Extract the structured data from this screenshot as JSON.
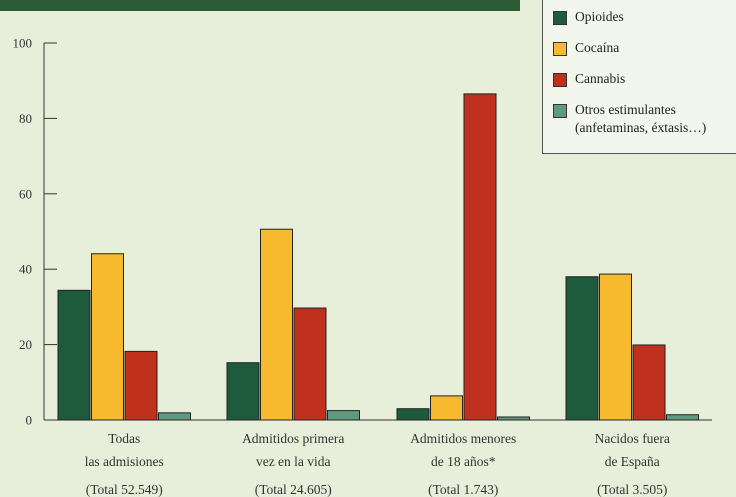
{
  "chart_data": {
    "type": "bar",
    "categories": [
      [
        "Todas",
        "las admisiones",
        "(Total 52.549)"
      ],
      [
        "Admitidos primera",
        "vez en la vida",
        "(Total 24.605)"
      ],
      [
        "Admitidos menores",
        "de 18 años*",
        "(Total 1.743)"
      ],
      [
        "Nacidos fuera",
        "de España",
        "(Total 3.505)"
      ]
    ],
    "series": [
      {
        "name": "Opioides",
        "color": "#1e5a3c",
        "values": [
          34.4,
          15.2,
          3.0,
          38.0
        ]
      },
      {
        "name": "Cocaína",
        "color": "#f7b92e",
        "values": [
          44.1,
          50.6,
          6.4,
          38.7
        ]
      },
      {
        "name": "Cannabis",
        "color": "#c0311d",
        "values": [
          18.2,
          29.7,
          86.5,
          19.9
        ]
      },
      {
        "name": "Otros estimulantes (anfetaminas, éxtasis…)",
        "color": "#5e9a80",
        "values": [
          1.9,
          2.5,
          0.8,
          1.4
        ]
      }
    ],
    "legend_lines": [
      [
        "Opioides"
      ],
      [
        "Cocaína"
      ],
      [
        "Cannabis"
      ],
      [
        "Otros estimulantes",
        "(anfetaminas, éxtasis…)"
      ]
    ],
    "ylim": [
      0,
      100
    ],
    "yticks": [
      0,
      20,
      40,
      60,
      80,
      100
    ],
    "legend_position": "top-right"
  }
}
